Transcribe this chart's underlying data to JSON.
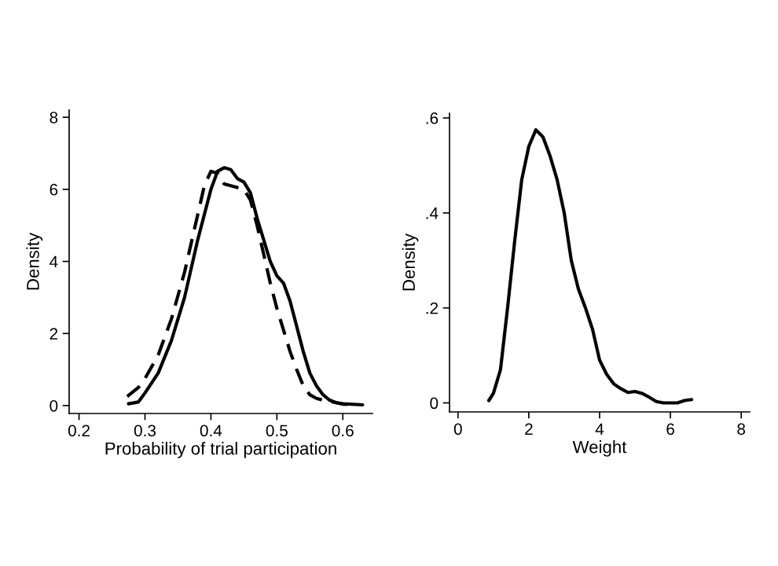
{
  "chart_data": [
    {
      "type": "line",
      "xlabel": "Probability of trial participation",
      "ylabel": "Density",
      "xlim": [
        0.185,
        0.645
      ],
      "ylim": [
        -0.22,
        8.2
      ],
      "xticks": [
        0.2,
        0.3,
        0.4,
        0.5,
        0.6
      ],
      "yticks": [
        0,
        2,
        4,
        6,
        8
      ],
      "grid": false,
      "marker": "none",
      "series": [
        {
          "color": "#000000",
          "line_style": "solid",
          "x": [
            0.275,
            0.29,
            0.3,
            0.32,
            0.34,
            0.36,
            0.38,
            0.4,
            0.41,
            0.42,
            0.43,
            0.44,
            0.45,
            0.46,
            0.47,
            0.48,
            0.49,
            0.5,
            0.51,
            0.52,
            0.53,
            0.54,
            0.55,
            0.56,
            0.57,
            0.58,
            0.59,
            0.6,
            0.62,
            0.63
          ],
          "values": [
            0.05,
            0.1,
            0.35,
            0.9,
            1.8,
            3.0,
            4.6,
            6.0,
            6.5,
            6.6,
            6.55,
            6.3,
            6.2,
            5.9,
            5.2,
            4.6,
            4.0,
            3.6,
            3.4,
            2.9,
            2.2,
            1.5,
            0.9,
            0.55,
            0.3,
            0.15,
            0.08,
            0.05,
            0.03,
            0.02
          ]
        },
        {
          "color": "#000000",
          "line_style": "dashed",
          "x": [
            0.273,
            0.29,
            0.3,
            0.32,
            0.34,
            0.36,
            0.38,
            0.39,
            0.4,
            0.41,
            0.42,
            0.43,
            0.44,
            0.45,
            0.46,
            0.47,
            0.48,
            0.49,
            0.5,
            0.51,
            0.52,
            0.53,
            0.54,
            0.55,
            0.56,
            0.57,
            0.58,
            0.59,
            0.6,
            0.62
          ],
          "values": [
            0.25,
            0.5,
            0.75,
            1.4,
            2.4,
            3.7,
            5.3,
            6.1,
            6.5,
            6.45,
            6.15,
            6.1,
            6.05,
            6.0,
            5.7,
            5.0,
            4.2,
            3.4,
            2.7,
            2.1,
            1.5,
            1.0,
            0.55,
            0.3,
            0.2,
            0.15,
            0.12,
            0.08,
            0.04,
            0.02
          ]
        }
      ]
    },
    {
      "type": "line",
      "xlabel": "Weight",
      "ylabel": "Density",
      "xlim": [
        -0.24,
        8.24
      ],
      "ylim": [
        -0.019,
        0.61
      ],
      "xticks": [
        0,
        2,
        4,
        6,
        8
      ],
      "yticks": [
        0,
        {
          "value": 0.2,
          "label": ".2"
        },
        {
          "value": 0.4,
          "label": ".4"
        },
        {
          "value": 0.6,
          "label": ".6"
        }
      ],
      "grid": false,
      "marker": "none",
      "series": [
        {
          "color": "#000000",
          "line_style": "solid",
          "x": [
            0.87,
            1.0,
            1.2,
            1.4,
            1.6,
            1.8,
            2.0,
            2.2,
            2.4,
            2.6,
            2.8,
            3.0,
            3.2,
            3.4,
            3.6,
            3.8,
            4.0,
            4.2,
            4.4,
            4.6,
            4.8,
            5.0,
            5.2,
            5.4,
            5.6,
            5.8,
            6.0,
            6.2,
            6.4,
            6.6
          ],
          "values": [
            0.005,
            0.02,
            0.07,
            0.2,
            0.34,
            0.47,
            0.54,
            0.575,
            0.56,
            0.52,
            0.47,
            0.4,
            0.3,
            0.24,
            0.2,
            0.155,
            0.09,
            0.06,
            0.04,
            0.03,
            0.022,
            0.024,
            0.02,
            0.012,
            0.003,
            0.0,
            0.0,
            0.0,
            0.005,
            0.007
          ]
        }
      ]
    }
  ]
}
